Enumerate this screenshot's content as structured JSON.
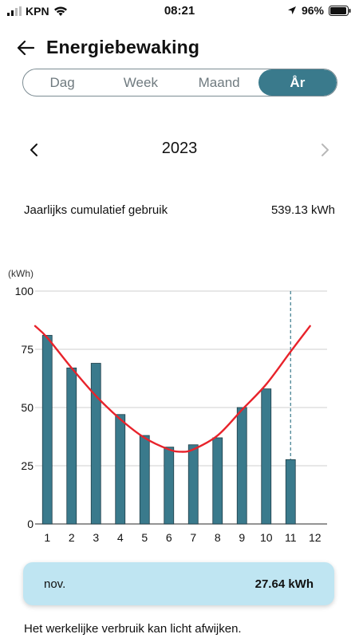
{
  "status_bar": {
    "carrier": "KPN",
    "time": "08:21",
    "battery": "96%"
  },
  "header": {
    "title": "Energiebewaking"
  },
  "tabs": [
    {
      "label": "Dag",
      "active": false
    },
    {
      "label": "Week",
      "active": false
    },
    {
      "label": "Maand",
      "active": false
    },
    {
      "label": "År",
      "active": true
    }
  ],
  "year_nav": {
    "year": "2023"
  },
  "summary": {
    "label": "Jaarlijks cumulatief gebruik",
    "value": "539.13 kWh"
  },
  "colors": {
    "accent": "#3a7a8c",
    "bar": "#3a7a8c",
    "trend": "#e8232b",
    "tooltip_bg": "#bfe5f2"
  },
  "chart_data": {
    "type": "bar",
    "unit_label": "(kWh)",
    "categories": [
      "1",
      "2",
      "3",
      "4",
      "5",
      "6",
      "7",
      "8",
      "9",
      "10",
      "11",
      "12"
    ],
    "values": [
      81,
      67,
      69,
      47,
      38,
      33,
      34,
      37,
      50,
      58,
      27.64,
      null
    ],
    "ylim": [
      0,
      100
    ],
    "yticks": [
      0,
      25,
      50,
      75,
      100
    ],
    "grid": true,
    "selected_index": 10,
    "trend_line": {
      "type": "line",
      "x": [
        0.5,
        1,
        2,
        3,
        4,
        5,
        6,
        6.5,
        7,
        8,
        9,
        10,
        11,
        11.8
      ],
      "values": [
        85,
        80,
        67,
        55,
        45,
        37,
        32,
        31,
        32,
        38,
        49,
        60,
        74,
        85
      ]
    }
  },
  "tooltip": {
    "label": "nov.",
    "value": "27.64 kWh"
  },
  "footer": {
    "disclaimer": "Het werkelijke verbruik kan licht afwijken."
  }
}
